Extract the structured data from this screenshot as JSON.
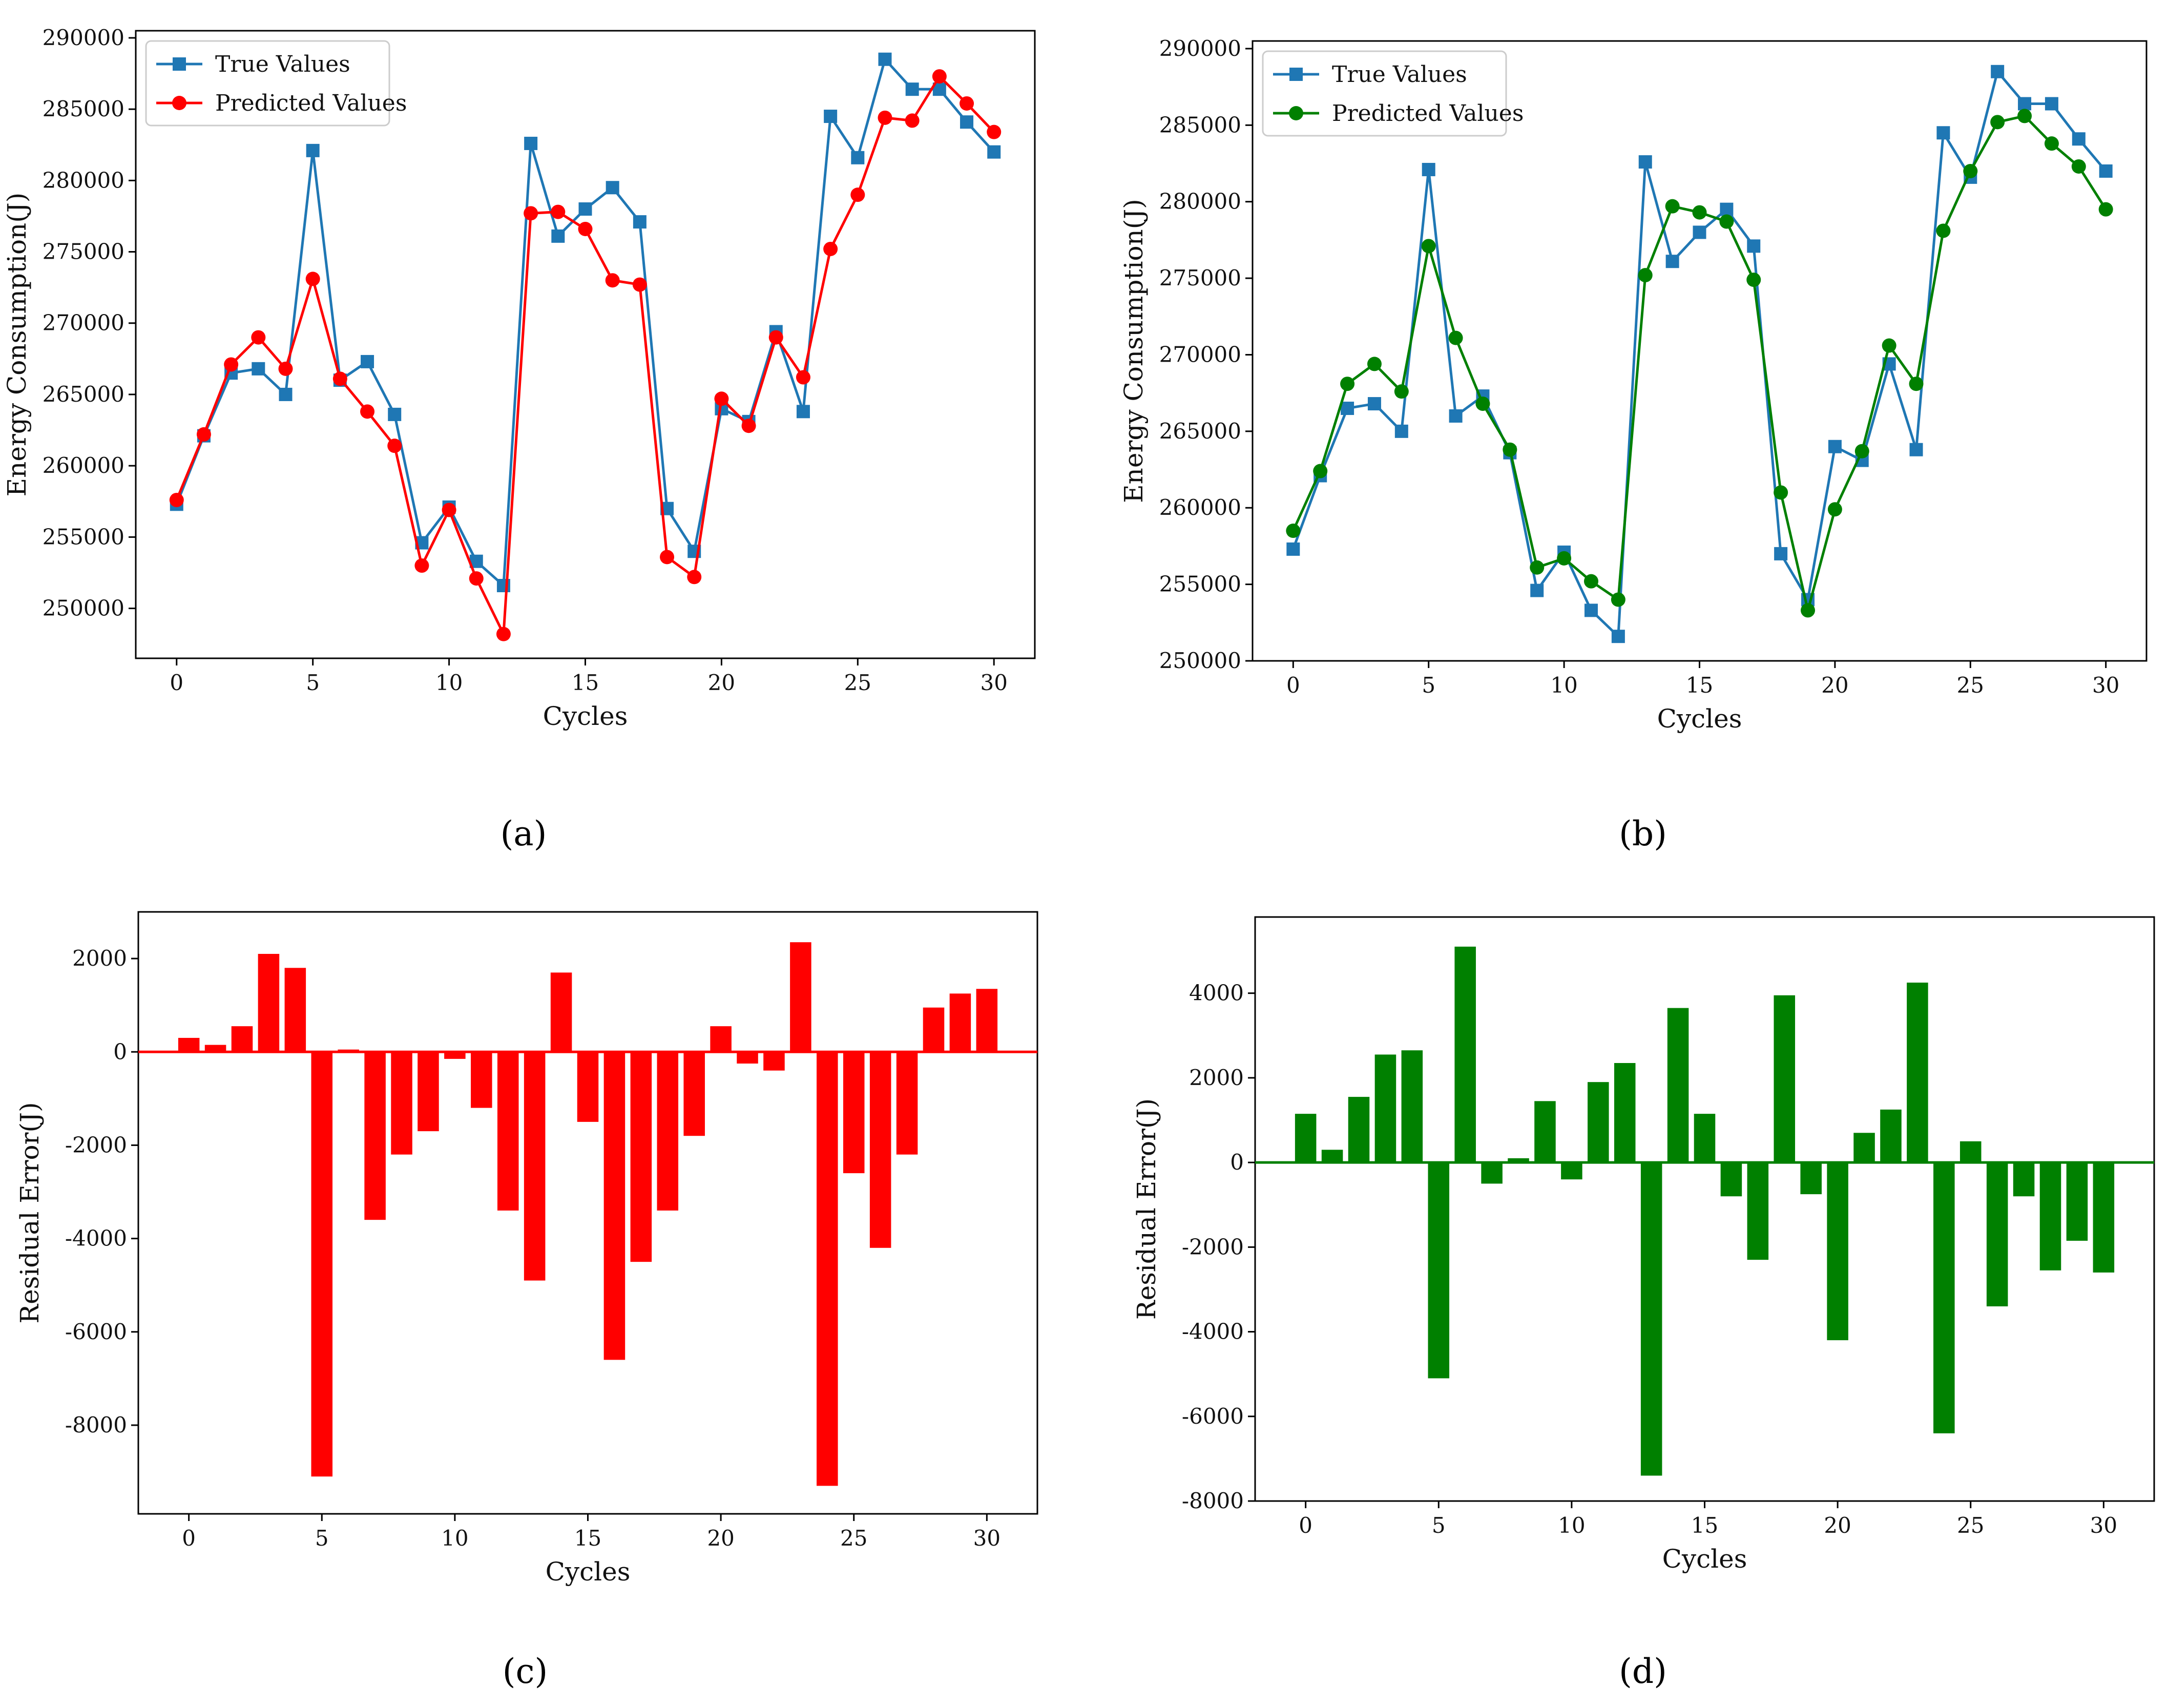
{
  "colors": {
    "true": "#1f77b4",
    "red": "#ff0000",
    "green": "#008000"
  },
  "chart_data": [
    {
      "id": "a",
      "type": "line",
      "caption": "(a)",
      "xlabel": "Cycles",
      "ylabel": "Energy Consumption(J)",
      "xlim": [
        -1.5,
        31.5
      ],
      "ylim": [
        246500,
        290500
      ],
      "xticks": [
        0,
        5,
        10,
        15,
        20,
        25,
        30
      ],
      "yticks": [
        250000,
        255000,
        260000,
        265000,
        270000,
        275000,
        280000,
        285000,
        290000
      ],
      "x": [
        0,
        1,
        2,
        3,
        4,
        5,
        6,
        7,
        8,
        9,
        10,
        11,
        12,
        13,
        14,
        15,
        16,
        17,
        18,
        19,
        20,
        21,
        22,
        23,
        24,
        25,
        26,
        27,
        28,
        29,
        30
      ],
      "legend": "top-left",
      "series": [
        {
          "name": "True Values",
          "marker": "square",
          "color": "#1f77b4",
          "values": [
            257300,
            262100,
            266500,
            266800,
            265000,
            282100,
            266000,
            267300,
            263600,
            254600,
            257100,
            253300,
            251600,
            282600,
            276100,
            278000,
            279500,
            277100,
            257000,
            254000,
            264000,
            263100,
            269400,
            263800,
            284500,
            281600,
            288500,
            286400,
            286400,
            284100,
            282000
          ]
        },
        {
          "name": "Predicted Values",
          "marker": "circle",
          "color": "#ff0000",
          "values": [
            257600,
            262200,
            267100,
            269000,
            266800,
            273100,
            266100,
            263800,
            261400,
            253000,
            256900,
            252100,
            248200,
            277700,
            277800,
            276600,
            273000,
            272700,
            253600,
            252200,
            264700,
            262800,
            269000,
            266200,
            275200,
            279000,
            284400,
            284200,
            287300,
            285400,
            283400
          ]
        }
      ]
    },
    {
      "id": "b",
      "type": "line",
      "caption": "(b)",
      "xlabel": "Cycles",
      "ylabel": "Energy Consumption(J)",
      "xlim": [
        -1.5,
        31.5
      ],
      "ylim": [
        250000,
        290500
      ],
      "xticks": [
        0,
        5,
        10,
        15,
        20,
        25,
        30
      ],
      "yticks": [
        250000,
        255000,
        260000,
        265000,
        270000,
        275000,
        280000,
        285000,
        290000
      ],
      "x": [
        0,
        1,
        2,
        3,
        4,
        5,
        6,
        7,
        8,
        9,
        10,
        11,
        12,
        13,
        14,
        15,
        16,
        17,
        18,
        19,
        20,
        21,
        22,
        23,
        24,
        25,
        26,
        27,
        28,
        29,
        30
      ],
      "legend": "top-left",
      "series": [
        {
          "name": "True Values",
          "marker": "square",
          "color": "#1f77b4",
          "values": [
            257300,
            262100,
            266500,
            266800,
            265000,
            282100,
            266000,
            267300,
            263600,
            254600,
            257100,
            253300,
            251600,
            282600,
            276100,
            278000,
            279500,
            277100,
            257000,
            254000,
            264000,
            263100,
            269400,
            263800,
            284500,
            281600,
            288500,
            286400,
            286400,
            284100,
            282000
          ]
        },
        {
          "name": "Predicted Values",
          "marker": "circle",
          "color": "#008000",
          "values": [
            258500,
            262400,
            268100,
            269400,
            267600,
            277100,
            271100,
            266800,
            263800,
            256100,
            256700,
            255200,
            254000,
            275200,
            279700,
            279300,
            278700,
            274900,
            261000,
            253300,
            259900,
            263700,
            270600,
            268100,
            278100,
            282000,
            285200,
            285600,
            283800,
            282300,
            279500
          ]
        }
      ]
    },
    {
      "id": "c",
      "type": "bar",
      "caption": "(c)",
      "xlabel": "Cycles",
      "ylabel": "Residual Error(J)",
      "xlim": [
        -1.9,
        31.9
      ],
      "ylim": [
        -9900,
        3000
      ],
      "xticks": [
        0,
        5,
        10,
        15,
        20,
        25,
        30
      ],
      "yticks": [
        -8000,
        -6000,
        -4000,
        -2000,
        0,
        2000
      ],
      "color": "#ff0000",
      "x": [
        0,
        1,
        2,
        3,
        4,
        5,
        6,
        7,
        8,
        9,
        10,
        11,
        12,
        13,
        14,
        15,
        16,
        17,
        18,
        19,
        20,
        21,
        22,
        23,
        24,
        25,
        26,
        27,
        28,
        29,
        30
      ],
      "values": [
        300,
        150,
        550,
        2100,
        1800,
        -9100,
        50,
        -3600,
        -2200,
        -1700,
        -150,
        -1200,
        -3400,
        -4900,
        1700,
        -1500,
        -6600,
        -4500,
        -3400,
        -1800,
        550,
        -250,
        -400,
        2350,
        -9300,
        -2600,
        -4200,
        -2200,
        950,
        1250,
        1350
      ]
    },
    {
      "id": "d",
      "type": "bar",
      "caption": "(d)",
      "xlabel": "Cycles",
      "ylabel": "Residual Error(J)",
      "xlim": [
        -1.9,
        31.9
      ],
      "ylim": [
        -8000,
        5800
      ],
      "xticks": [
        0,
        5,
        10,
        15,
        20,
        25,
        30
      ],
      "yticks": [
        -8000,
        -6000,
        -4000,
        -2000,
        0,
        2000,
        4000
      ],
      "color": "#008000",
      "x": [
        0,
        1,
        2,
        3,
        4,
        5,
        6,
        7,
        8,
        9,
        10,
        11,
        12,
        13,
        14,
        15,
        16,
        17,
        18,
        19,
        20,
        21,
        22,
        23,
        24,
        25,
        26,
        27,
        28,
        29,
        30
      ],
      "values": [
        1150,
        300,
        1550,
        2550,
        2650,
        -5100,
        5100,
        -500,
        100,
        1450,
        -400,
        1900,
        2350,
        -7400,
        3650,
        1150,
        -800,
        -2300,
        3950,
        -750,
        -4200,
        700,
        1250,
        4250,
        -6400,
        500,
        -3400,
        -800,
        -2550,
        -1850,
        -2600
      ]
    }
  ]
}
